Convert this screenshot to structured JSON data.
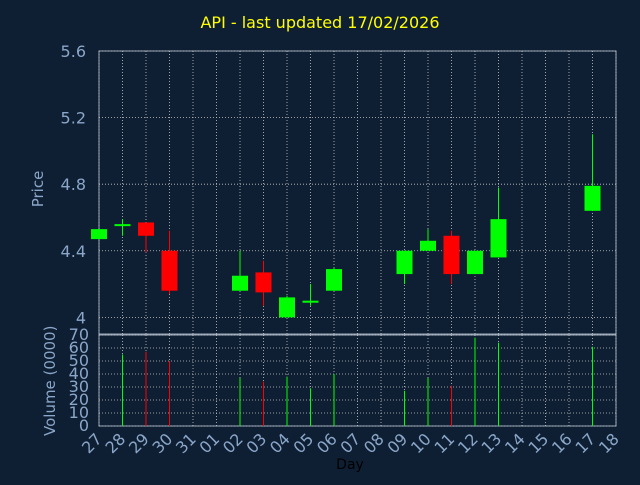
{
  "chart_data": {
    "type": "candlestick",
    "title": "API - last updated 17/02/2026",
    "price_axis": {
      "label": "Price",
      "ticks": [
        "5.6",
        "5.2",
        "4.8",
        "4.4",
        "4"
      ],
      "ylim": [
        3.9,
        5.6
      ]
    },
    "volume_axis": {
      "label": "Volume (0000)",
      "ticks": [
        "70",
        "60",
        "50",
        "40",
        "30",
        "20",
        "10",
        "0"
      ],
      "ylim": [
        0,
        70
      ]
    },
    "x_axis": {
      "label": "Day",
      "ticks": [
        "27",
        "28",
        "29",
        "30",
        "31",
        "01",
        "02",
        "03",
        "04",
        "05",
        "06",
        "07",
        "08",
        "09",
        "10",
        "11",
        "12",
        "13",
        "14",
        "15",
        "16",
        "17",
        "18"
      ]
    },
    "colors": {
      "up": "#00ff00",
      "down": "#ff0000",
      "text": "#8aa6c8",
      "title": "#ffff00",
      "background": "#0f1f33",
      "grid": "#c8c8c8"
    },
    "grid": true,
    "candles": [
      {
        "day": "27",
        "open": 4.47,
        "high": 4.53,
        "low": 4.47,
        "close": 4.53
      },
      {
        "day": "28",
        "open": 4.55,
        "high": 4.59,
        "low": 4.49,
        "close": 4.56
      },
      {
        "day": "29",
        "open": 4.57,
        "high": 4.57,
        "low": 4.39,
        "close": 4.49
      },
      {
        "day": "30",
        "open": 4.4,
        "high": 4.52,
        "low": 4.14,
        "close": 4.16
      },
      {
        "day": "02",
        "open": 4.16,
        "high": 4.4,
        "low": 4.16,
        "close": 4.25
      },
      {
        "day": "03",
        "open": 4.27,
        "high": 4.34,
        "low": 4.07,
        "close": 4.15
      },
      {
        "day": "04",
        "open": 4.0,
        "high": 4.13,
        "low": 4.0,
        "close": 4.12
      },
      {
        "day": "05",
        "open": 4.09,
        "high": 4.2,
        "low": 4.07,
        "close": 4.1
      },
      {
        "day": "06",
        "open": 4.16,
        "high": 4.3,
        "low": 4.16,
        "close": 4.29
      },
      {
        "day": "09",
        "open": 4.26,
        "high": 4.4,
        "low": 4.2,
        "close": 4.4
      },
      {
        "day": "10",
        "open": 4.4,
        "high": 4.53,
        "low": 4.4,
        "close": 4.46
      },
      {
        "day": "11",
        "open": 4.49,
        "high": 4.52,
        "low": 4.2,
        "close": 4.26
      },
      {
        "day": "12",
        "open": 4.26,
        "high": 4.4,
        "low": 4.26,
        "close": 4.4
      },
      {
        "day": "13",
        "open": 4.36,
        "high": 4.78,
        "low": 4.36,
        "close": 4.59
      },
      {
        "day": "17",
        "open": 4.64,
        "high": 5.1,
        "low": 4.64,
        "close": 4.79
      }
    ],
    "volume": [
      {
        "day": "28",
        "value": 55,
        "dir": "up"
      },
      {
        "day": "29",
        "value": 57,
        "dir": "down"
      },
      {
        "day": "30",
        "value": 50,
        "dir": "down"
      },
      {
        "day": "02",
        "value": 37,
        "dir": "up"
      },
      {
        "day": "03",
        "value": 34,
        "dir": "down"
      },
      {
        "day": "04",
        "value": 38,
        "dir": "up"
      },
      {
        "day": "05",
        "value": 29,
        "dir": "up"
      },
      {
        "day": "06",
        "value": 40,
        "dir": "up"
      },
      {
        "day": "09",
        "value": 27,
        "dir": "up"
      },
      {
        "day": "10",
        "value": 37,
        "dir": "up"
      },
      {
        "day": "11",
        "value": 31,
        "dir": "down"
      },
      {
        "day": "12",
        "value": 68,
        "dir": "up"
      },
      {
        "day": "13",
        "value": 64,
        "dir": "up"
      },
      {
        "day": "17",
        "value": 61,
        "dir": "up"
      }
    ]
  }
}
